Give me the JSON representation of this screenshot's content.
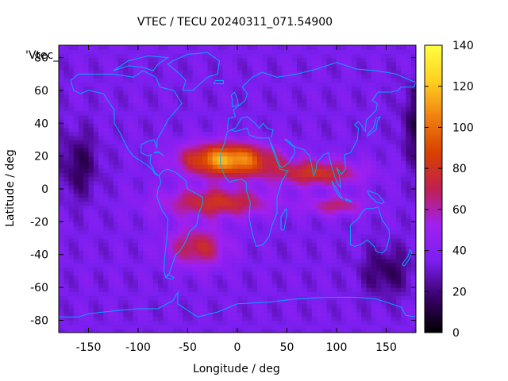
{
  "chart_data": {
    "type": "heatmap",
    "title": "VTEC / TECU 20240311_071.54900",
    "xlabel": "Longitude / deg",
    "ylabel": "Latitude / deg",
    "xlim": [
      -180,
      180
    ],
    "ylim": [
      -87.5,
      87.5
    ],
    "xticks": [
      -150,
      -100,
      -50,
      0,
      50,
      100,
      150
    ],
    "yticks": [
      -80,
      -60,
      -40,
      -20,
      0,
      20,
      40,
      60,
      80
    ],
    "colorbar": {
      "range": [
        0,
        140
      ],
      "ticks": [
        0,
        20,
        40,
        60,
        80,
        100,
        120,
        140
      ],
      "palette": [
        "#000000",
        "#3a006b",
        "#7b1ff0",
        "#a020f0",
        "#c02050",
        "#d84000",
        "#f08010",
        "#ffd020",
        "#ffff40"
      ]
    },
    "legend_key": "'Vtec_",
    "grid": {
      "lon_step": 5,
      "lat_step": 2.5
    },
    "features": [
      {
        "name": "equatorial anomaly crest (Africa/Atlantic)",
        "lon": -10,
        "lat": 18,
        "peak_tec": 115
      },
      {
        "name": "southern anomaly crest",
        "lon": -20,
        "lat": -8,
        "peak_tec": 95
      },
      {
        "name": "extension over Indian Ocean",
        "lon": 80,
        "lat": 10,
        "peak_tec": 80
      },
      {
        "name": "southern Atlantic/South America",
        "lon": -40,
        "lat": -35,
        "peak_tec": 75
      }
    ],
    "background_tec": 35,
    "polar_min_tec": 15
  }
}
